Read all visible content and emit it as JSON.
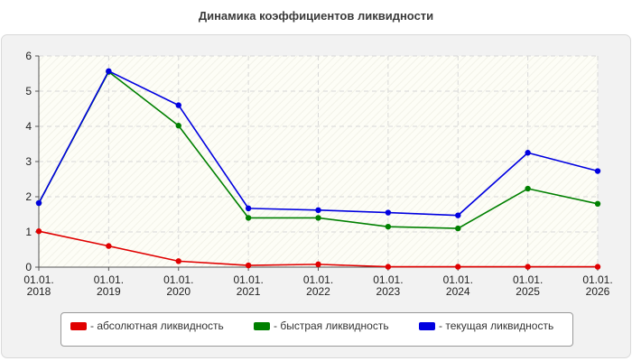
{
  "chart_data": {
    "type": "line",
    "title": "Динамика коэффициентов ликвидности",
    "categories": [
      [
        "01.01.",
        "2018"
      ],
      [
        "01.01.",
        "2019"
      ],
      [
        "01.01.",
        "2020"
      ],
      [
        "01.01.",
        "2021"
      ],
      [
        "01.01.",
        "2022"
      ],
      [
        "01.01.",
        "2023"
      ],
      [
        "01.01.",
        "2024"
      ],
      [
        "01.01.",
        "2025"
      ],
      [
        "01.01.",
        "2026"
      ]
    ],
    "ylim": [
      0,
      6
    ],
    "yticks": [
      0,
      1,
      2,
      3,
      4,
      5,
      6
    ],
    "grid": true,
    "legend_position": "bottom",
    "series": [
      {
        "name": "- абсолютная ликвидность",
        "color": "#e00000",
        "values": [
          1.02,
          0.6,
          0.17,
          0.05,
          0.08,
          0.01,
          0.01,
          0.01,
          0.01
        ]
      },
      {
        "name": "- быстрая ликвидность",
        "color": "#008000",
        "values": [
          1.82,
          5.55,
          4.02,
          1.4,
          1.4,
          1.15,
          1.1,
          2.23,
          1.8
        ]
      },
      {
        "name": "- текущая ликвидность",
        "color": "#0000e0",
        "values": [
          1.82,
          5.57,
          4.6,
          1.67,
          1.62,
          1.55,
          1.47,
          3.25,
          2.73
        ]
      }
    ]
  }
}
